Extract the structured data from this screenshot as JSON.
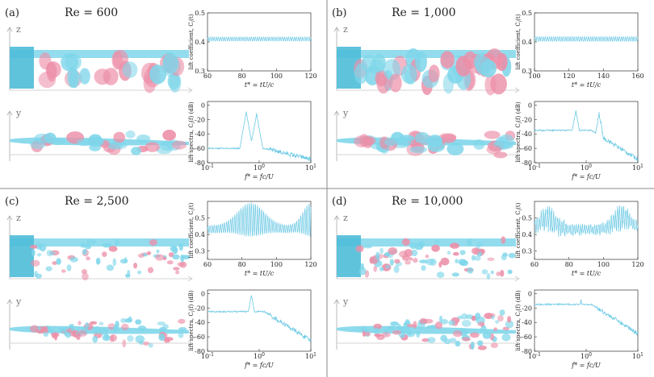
{
  "colors": {
    "cyan": "#7fd6ea",
    "cyan_dark": "#4fbcd8",
    "pink": "#ec8fa8",
    "line": "#6cc9e4",
    "divider": "#8a8a8a"
  },
  "panels": [
    {
      "label": "(a)",
      "re": "Re = 600"
    },
    {
      "label": "(b)",
      "re": "Re = 1,000"
    },
    {
      "label": "(c)",
      "re": "Re = 2,500"
    },
    {
      "label": "(d)",
      "re": "Re = 10,000"
    }
  ],
  "axes_letters": {
    "z": "z",
    "y": "y"
  },
  "chart_data": [
    {
      "panel": "a",
      "kind": "time",
      "type": "line",
      "ylabel": "lift coefficient, C_l(t)",
      "xlabel": "t* = tU/c",
      "xticks": [
        "60",
        "80",
        "100",
        "120"
      ],
      "yticks": [
        "0.3",
        "0.4",
        "0.5"
      ],
      "xlim": [
        60,
        120
      ],
      "ylim": [
        0.3,
        0.5
      ],
      "mean": 0.41,
      "amplitude": 0.007,
      "envelope": "constant"
    },
    {
      "panel": "a",
      "kind": "spectrum",
      "type": "line",
      "ylabel": "lift spectra, C_l(f) (dB)",
      "xlabel": "f* = fc/U",
      "xticks": [
        "10^-1",
        "10^0",
        "10^1"
      ],
      "yticks": [
        "0",
        "-20",
        "-40",
        "-60",
        "-80"
      ],
      "xlim_log10": [
        -1,
        1
      ],
      "ylim": [
        -80,
        5
      ],
      "peaks_log10": [
        -0.25,
        -0.05
      ],
      "peak_db": [
        -10,
        -12
      ],
      "base_db": -60
    },
    {
      "panel": "b",
      "kind": "time",
      "type": "line",
      "ylabel": "lift coefficient, C_l(t)",
      "xlabel": "t* = tU/c",
      "xticks": [
        "100",
        "120",
        "140",
        "160"
      ],
      "yticks": [
        "0.3",
        "0.4",
        "0.5"
      ],
      "xlim": [
        100,
        160
      ],
      "ylim": [
        0.3,
        0.5
      ],
      "mean": 0.41,
      "amplitude": 0.008,
      "envelope": "constant"
    },
    {
      "panel": "b",
      "kind": "spectrum",
      "type": "line",
      "ylabel": "lift spectra, C_l(f) (dB)",
      "xlabel": "f* = fc/U",
      "xticks": [
        "10^-1",
        "10^0",
        "10^1"
      ],
      "yticks": [
        "0",
        "-20",
        "-40",
        "-60",
        "-80"
      ],
      "xlim_log10": [
        -1,
        1
      ],
      "ylim": [
        -80,
        5
      ],
      "peaks_log10": [
        -0.2,
        0.25
      ],
      "peak_db": [
        -8,
        -12
      ],
      "base_db": -35
    },
    {
      "panel": "c",
      "kind": "time",
      "type": "line",
      "ylabel": "lift coefficient, C_l(t)",
      "xlabel": "t* = tU/c",
      "xticks": [
        "60",
        "80",
        "100",
        "120"
      ],
      "yticks": [
        "0.3",
        "0.4",
        "0.5"
      ],
      "xlim": [
        60,
        120
      ],
      "ylim": [
        0.25,
        0.6
      ],
      "mean": 0.43,
      "amplitude": 0.09,
      "envelope": "bulge"
    },
    {
      "panel": "c",
      "kind": "spectrum",
      "type": "line",
      "ylabel": "lift spectra, C_l(f) (dB)",
      "xlabel": "f* = fc/U",
      "xticks": [
        "10^-1",
        "10^0",
        "10^1"
      ],
      "yticks": [
        "0",
        "-20",
        "-40",
        "-60",
        "-80"
      ],
      "xlim_log10": [
        -1,
        1
      ],
      "ylim": [
        -80,
        5
      ],
      "peaks_log10": [
        -0.15
      ],
      "peak_db": [
        -2
      ],
      "base_db": -25
    },
    {
      "panel": "d",
      "kind": "time",
      "type": "line",
      "ylabel": "lift coefficient, C_l(t)",
      "xlabel": "t* = tU/c",
      "xticks": [
        "60",
        "80",
        "100",
        "120"
      ],
      "yticks": [
        "0.3",
        "0.4",
        "0.5"
      ],
      "xlim": [
        60,
        120
      ],
      "ylim": [
        0.25,
        0.6
      ],
      "mean": 0.45,
      "amplitude": 0.05,
      "envelope": "wobble"
    },
    {
      "panel": "d",
      "kind": "spectrum",
      "type": "line",
      "ylabel": "lift spectra, C_l(f) (dB)",
      "xlabel": "f* = fc/U",
      "xticks": [
        "10^-1",
        "10^0",
        "10^1"
      ],
      "yticks": [
        "0",
        "-20",
        "-40",
        "-60",
        "-80"
      ],
      "xlim_log10": [
        -1,
        1
      ],
      "ylim": [
        -80,
        5
      ],
      "peaks_log10": [
        -0.1
      ],
      "peak_db": [
        -8
      ],
      "base_db": -15
    }
  ]
}
